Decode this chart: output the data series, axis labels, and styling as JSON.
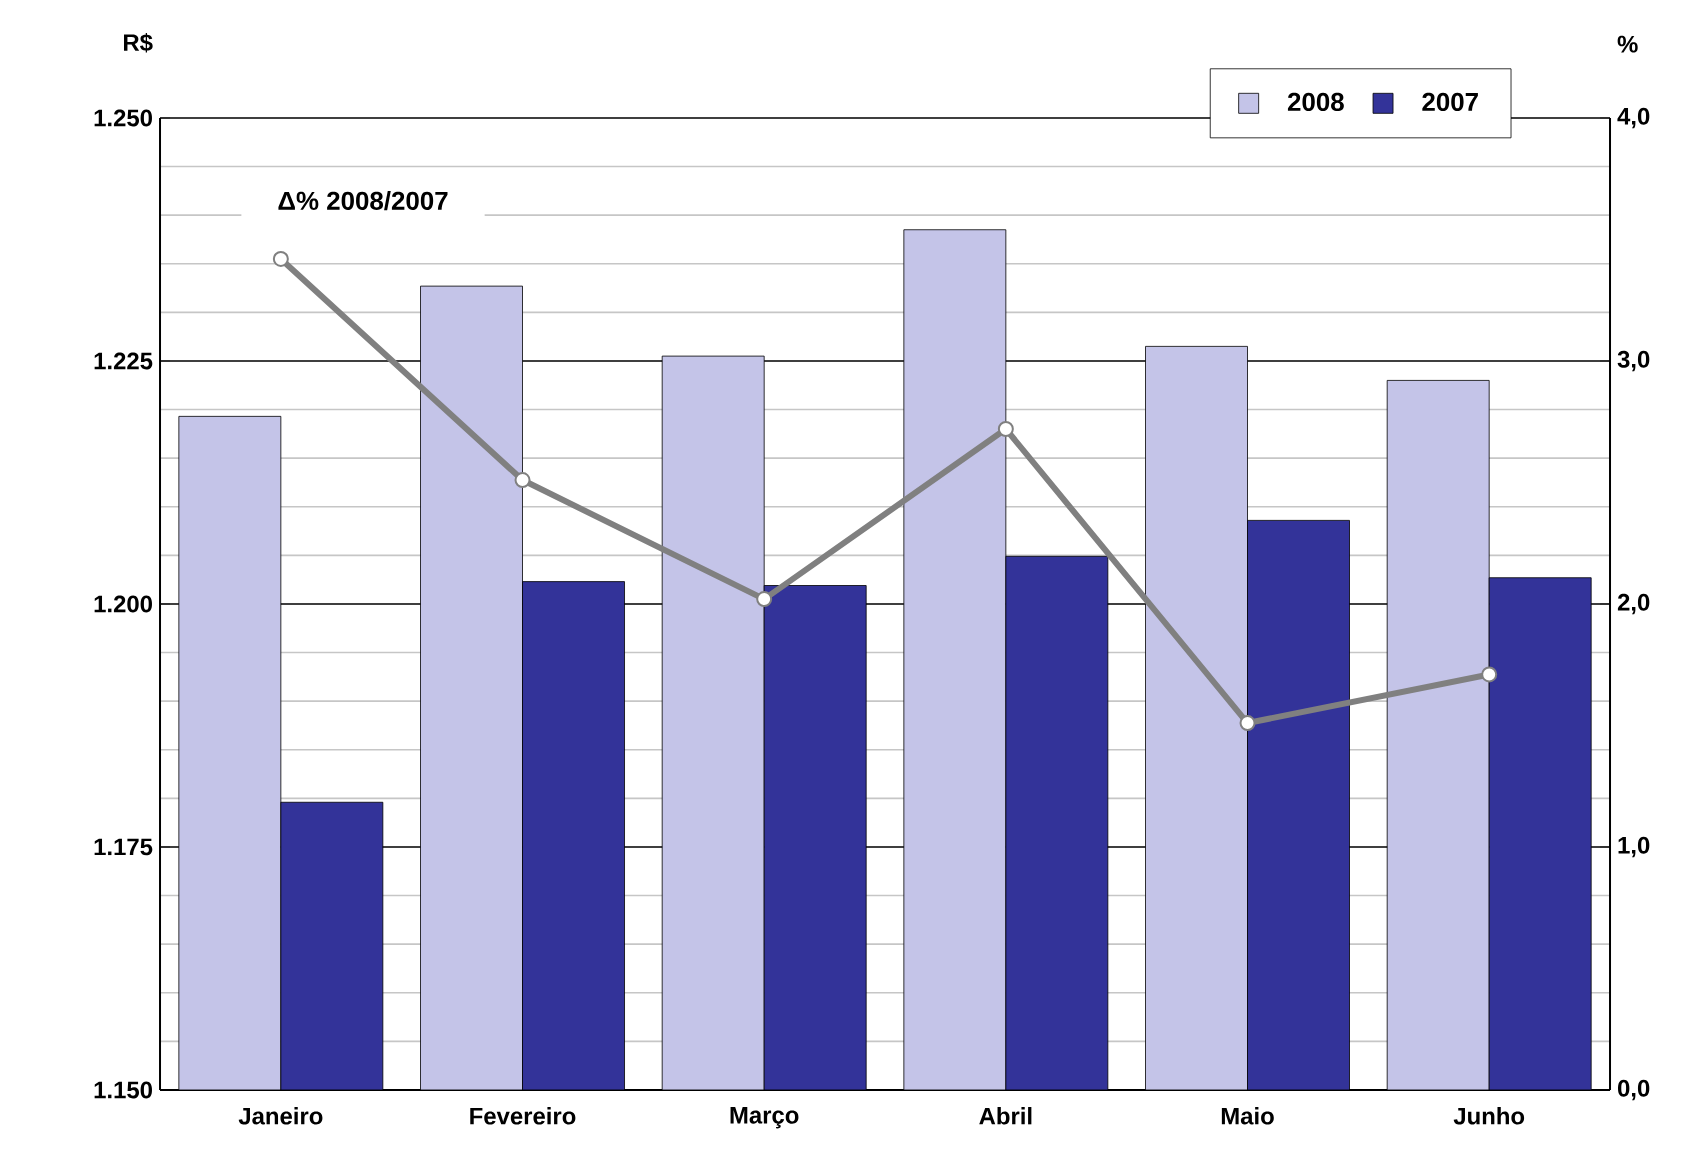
{
  "chart_data": {
    "type": "bar",
    "categories": [
      "Janeiro",
      "Fevereiro",
      "Março",
      "Abril",
      "Maio",
      "Junho"
    ],
    "ylabel": "R$",
    "y2label": "%",
    "ylim": [
      1150,
      1250
    ],
    "yticks": [
      {
        "value": 1150,
        "label": "1.150"
      },
      {
        "value": 1175,
        "label": "1.175"
      },
      {
        "value": 1200,
        "label": "1.200"
      },
      {
        "value": 1225,
        "label": "1.225"
      },
      {
        "value": 1250,
        "label": "1.250"
      }
    ],
    "y2lim": [
      0,
      4
    ],
    "y2ticks": [
      {
        "value": 0,
        "label": "0,0"
      },
      {
        "value": 1,
        "label": "1,0"
      },
      {
        "value": 2,
        "label": "2,0"
      },
      {
        "value": 3,
        "label": "3,0"
      },
      {
        "value": 4,
        "label": "4,0"
      }
    ],
    "grid": "y",
    "legend": "top right",
    "marker": "circle",
    "series": [
      {
        "name": "2008",
        "color": "#c4c4e8",
        "values": [
          1219.3,
          1232.7,
          1225.5,
          1238.5,
          1226.5,
          1223
        ]
      },
      {
        "name": "2007",
        "color": "#333399",
        "values": [
          1179.6,
          1202.3,
          1201.9,
          1204.9,
          1208.6,
          1202.7
        ]
      },
      {
        "name": "Δ% 2008/2007",
        "type": "line",
        "axis": "y2",
        "color": "#808080",
        "values": [
          3.42,
          2.51,
          2.02,
          2.72,
          1.51,
          1.71
        ]
      }
    ]
  }
}
